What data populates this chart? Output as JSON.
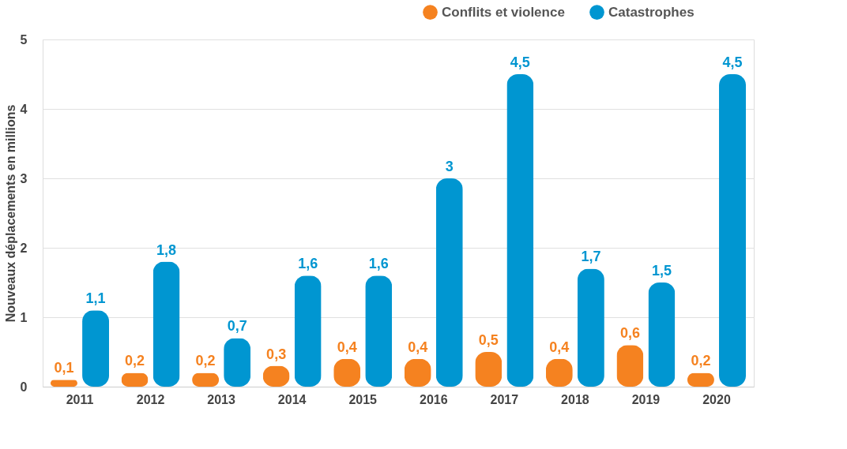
{
  "chart_data": {
    "type": "bar",
    "categories": [
      "2011",
      "2012",
      "2013",
      "2014",
      "2015",
      "2016",
      "2017",
      "2018",
      "2019",
      "2020"
    ],
    "ylabel": "Nouveaux déplacements en millions",
    "ylim": [
      0,
      5
    ],
    "yticks": [
      0,
      1,
      2,
      3,
      4,
      5
    ],
    "grid": "y",
    "legend": "top right",
    "series": [
      {
        "name": "Conflits et violence",
        "color": "#f58220",
        "values": [
          0.1,
          0.2,
          0.2,
          0.3,
          0.4,
          0.4,
          0.5,
          0.4,
          0.6,
          0.2
        ],
        "value_labels": [
          "0,1",
          "0,2",
          "0,2",
          "0,3",
          "0,4",
          "0,4",
          "0,5",
          "0,4",
          "0,6",
          "0,2"
        ]
      },
      {
        "name": "Catastrophes",
        "color": "#0096d1",
        "values": [
          1.1,
          1.8,
          0.7,
          1.6,
          1.6,
          3,
          4.5,
          1.7,
          1.5,
          4.5
        ],
        "value_labels": [
          "1,1",
          "1,8",
          "0,7",
          "1,6",
          "1,6",
          "3",
          "4,5",
          "1,7",
          "1,5",
          "4,5"
        ]
      }
    ]
  }
}
